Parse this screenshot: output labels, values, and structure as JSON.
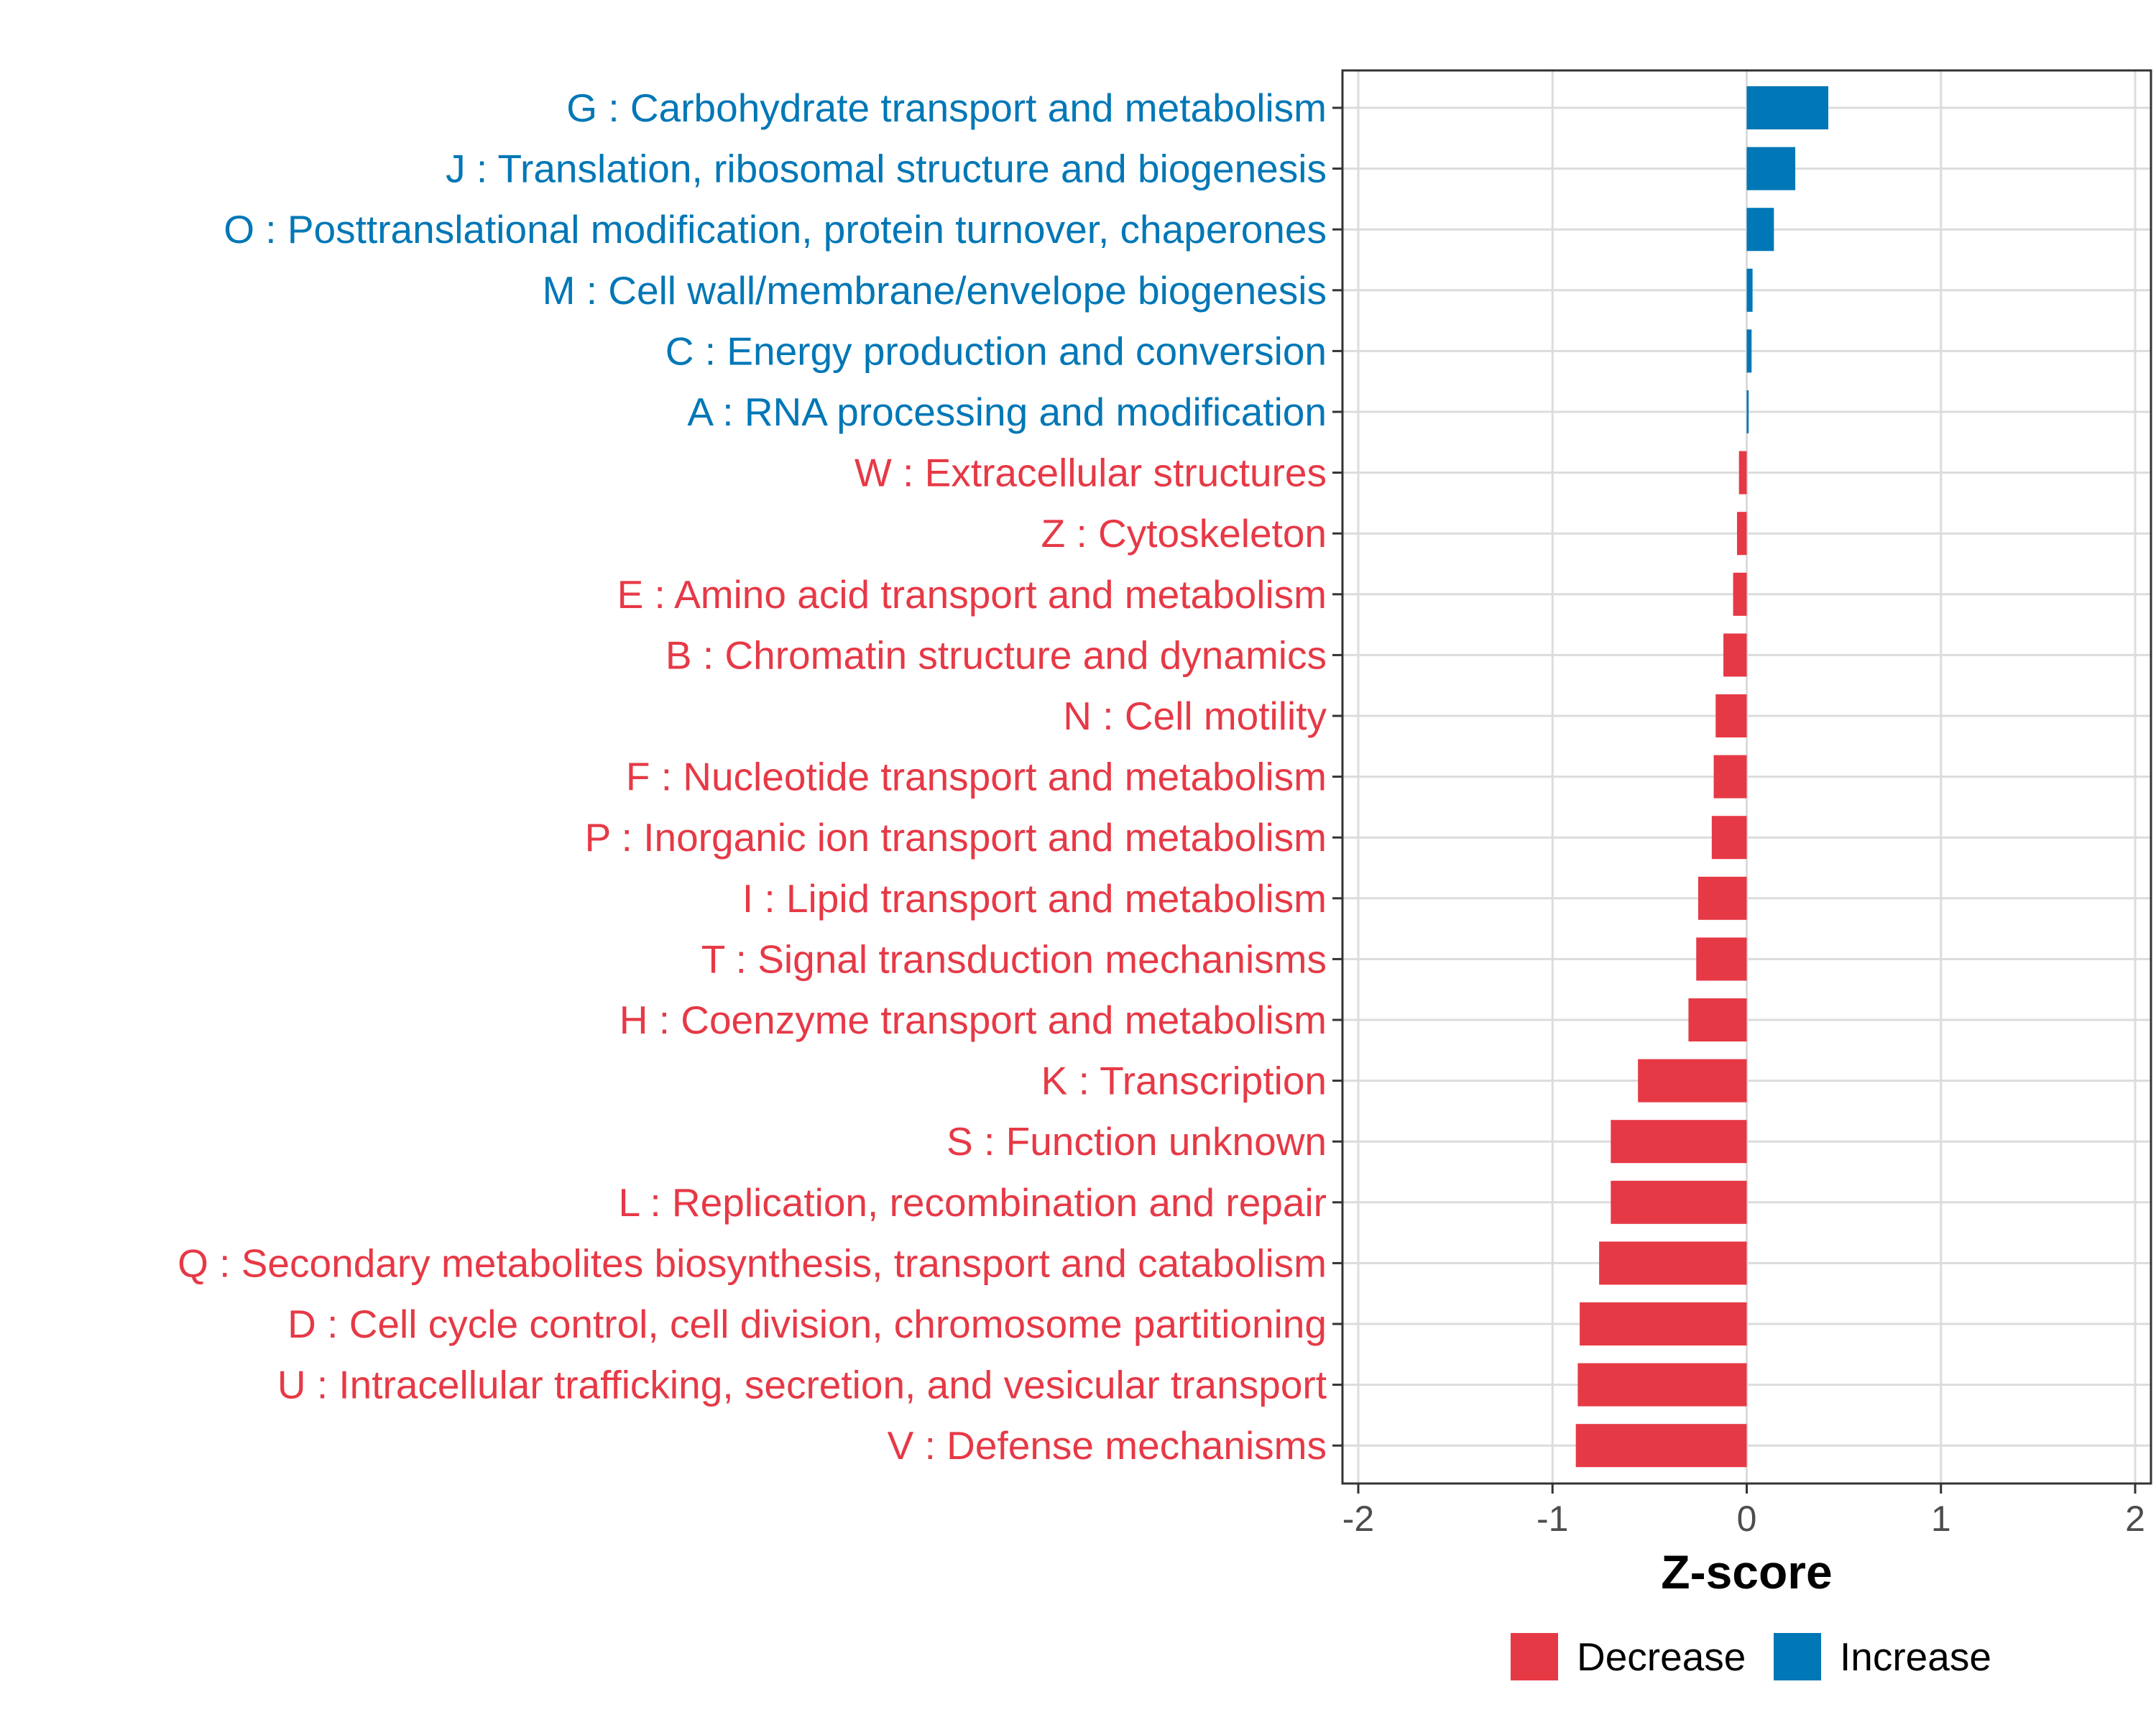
{
  "chart_data": {
    "type": "bar",
    "orientation": "horizontal",
    "title": "",
    "xlabel": "Z-score",
    "ylabel": "",
    "xlim": [
      -2,
      2
    ],
    "xticks": [
      -2,
      -1,
      0,
      1,
      2
    ],
    "xtick_labels": [
      "-2",
      "-1",
      "0",
      "1",
      "2"
    ],
    "grid": true,
    "legend_position": "bottom",
    "categories": [
      "G : Carbohydrate transport and metabolism",
      "J : Translation, ribosomal structure and biogenesis",
      "O : Posttranslational modification, protein turnover, chaperones",
      "M : Cell wall/membrane/envelope biogenesis",
      "C : Energy production and conversion",
      "A : RNA processing and modification",
      "W : Extracellular structures",
      "Z : Cytoskeleton",
      "E : Amino acid transport and metabolism",
      "B : Chromatin structure and dynamics",
      "N : Cell motility",
      "F : Nucleotide transport and metabolism",
      "P : Inorganic ion transport and metabolism",
      "I : Lipid transport and metabolism",
      "T : Signal transduction mechanisms",
      "H : Coenzyme transport and metabolism",
      "K : Transcription",
      "S : Function unknown",
      "L : Replication, recombination and repair",
      "Q : Secondary metabolites biosynthesis, transport and catabolism",
      "D : Cell cycle control, cell division, chromosome partitioning",
      "U : Intracellular trafficking, secretion, and vesicular transport",
      "V : Defense mechanisms"
    ],
    "values": [
      0.42,
      0.25,
      0.14,
      0.03,
      0.025,
      0.01,
      -0.04,
      -0.05,
      -0.07,
      -0.12,
      -0.16,
      -0.17,
      -0.18,
      -0.25,
      -0.26,
      -0.3,
      -0.56,
      -0.7,
      -0.7,
      -0.76,
      -0.86,
      -0.87,
      -0.88
    ],
    "groups": [
      "Increase",
      "Increase",
      "Increase",
      "Increase",
      "Increase",
      "Increase",
      "Decrease",
      "Decrease",
      "Decrease",
      "Decrease",
      "Decrease",
      "Decrease",
      "Decrease",
      "Decrease",
      "Decrease",
      "Decrease",
      "Decrease",
      "Decrease",
      "Decrease",
      "Decrease",
      "Decrease",
      "Decrease",
      "Decrease"
    ],
    "legend": [
      {
        "name": "Decrease",
        "color": "#e63946"
      },
      {
        "name": "Increase",
        "color": "#0077b6"
      }
    ]
  }
}
